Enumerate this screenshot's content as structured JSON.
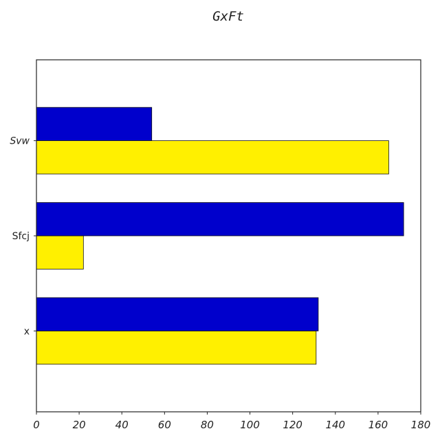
{
  "chart_data": {
    "type": "bar",
    "orientation": "horizontal",
    "title": "GxFt",
    "xlabel": "",
    "ylabel": "",
    "categories": [
      "x",
      "Sfcj",
      "Svw"
    ],
    "category_italic": [
      false,
      false,
      true
    ],
    "series": [
      {
        "values": [
          131,
          22,
          165
        ],
        "color": "#FFF000"
      },
      {
        "values": [
          132,
          172,
          54
        ],
        "color": "#0000CC"
      }
    ],
    "xlim": [
      0,
      180
    ],
    "xticks": [
      0,
      20,
      40,
      60,
      80,
      100,
      120,
      140,
      160,
      180
    ],
    "grid": false,
    "legend": "none"
  }
}
